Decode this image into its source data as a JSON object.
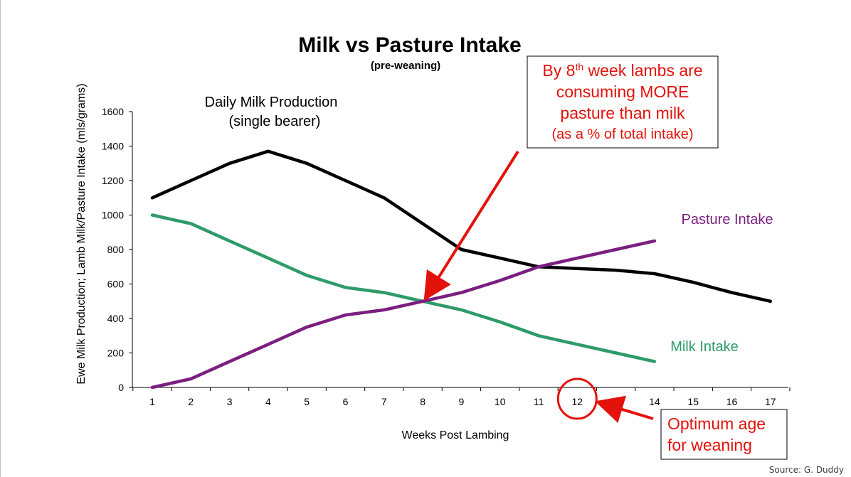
{
  "chart_data": {
    "type": "line",
    "title": "Milk vs Pasture Intake",
    "subtitle": "(pre-weaning)",
    "xlabel": "Weeks Post Lambing",
    "ylabel": "Ewe Milk Production; Lamb Milk/Pasture Intake (mls/grams)",
    "x": [
      1,
      2,
      3,
      4,
      5,
      6,
      7,
      8,
      9,
      10,
      11,
      12,
      13,
      14,
      15,
      16,
      17
    ],
    "ylim": [
      0,
      1600
    ],
    "yticks": [
      0,
      200,
      400,
      600,
      800,
      1000,
      1200,
      1400,
      1600
    ],
    "grid": false,
    "series": [
      {
        "name": "Daily Milk Production (single bearer)",
        "color": "#000000",
        "values": [
          1100,
          1200,
          1300,
          1370,
          1300,
          1200,
          1100,
          950,
          800,
          750,
          700,
          690,
          680,
          660,
          610,
          550,
          500
        ]
      },
      {
        "name": "Milk Intake",
        "color": "#2e9b68",
        "values": [
          1000,
          950,
          850,
          750,
          650,
          580,
          550,
          500,
          450,
          380,
          300,
          250,
          200,
          150,
          null,
          null,
          null
        ]
      },
      {
        "name": "Pasture Intake",
        "color": "#7a1f7f",
        "values": [
          0,
          50,
          150,
          250,
          350,
          420,
          450,
          500,
          550,
          620,
          700,
          750,
          800,
          850,
          null,
          null,
          null
        ]
      }
    ],
    "annotations": {
      "milk_production_label_line1": "Daily Milk Production",
      "milk_production_label_line2": "(single bearer)",
      "pasture_label": "Pasture Intake",
      "milk_intake_label": "Milk Intake",
      "callout_crossover": {
        "line1_pre": "By 8",
        "line1_sup": "th",
        "line1_post": " week lambs are",
        "line2": "consuming MORE",
        "line3": "pasture than milk",
        "line4": "(as a % of total intake)",
        "points_to_week": 8,
        "points_to_value": 500
      },
      "callout_weaning": {
        "line1": "Optimum age",
        "line2": "for weaning",
        "circled_week": 12
      },
      "accent_color": "#e3120b"
    }
  },
  "source": "Source: G. Duddy"
}
